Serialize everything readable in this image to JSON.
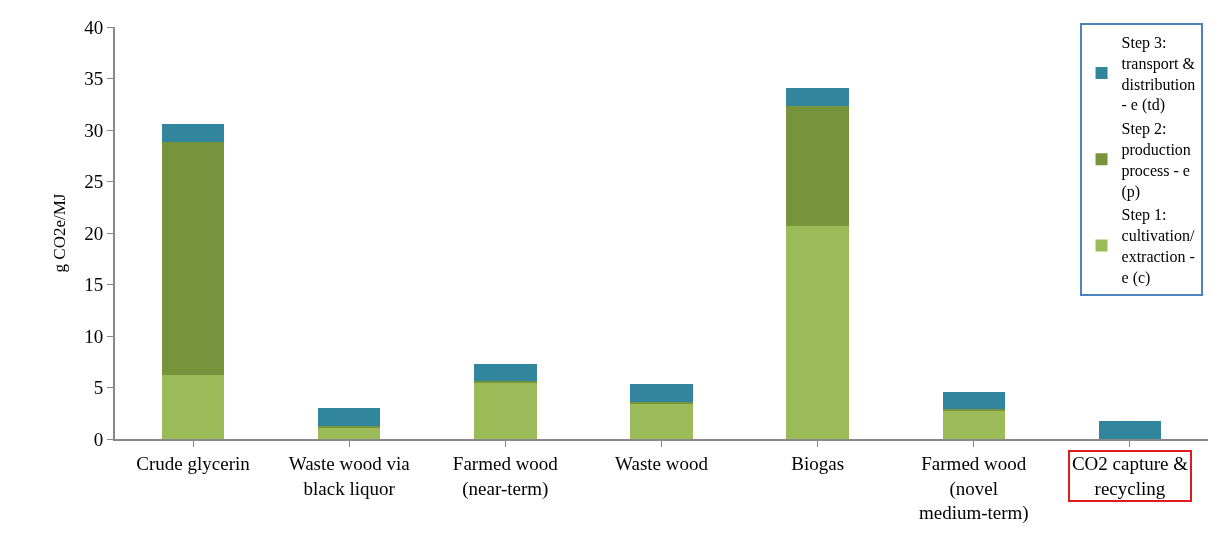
{
  "chart_data": {
    "type": "bar",
    "stacked": true,
    "ylabel": "g CO2e/MJ",
    "categories": [
      "Crude glycerin",
      "Waste wood via black liquor",
      "Farmed wood (near-term)",
      "Waste wood",
      "Biogas",
      "Farmed wood (novel medium-term)",
      "CO2 capture & recycling"
    ],
    "series": [
      {
        "name": "Step 1: cultivation/ extraction - e (c)",
        "color": "#9bbb59",
        "values": [
          6.2,
          1.1,
          5.4,
          3.4,
          20.7,
          2.8,
          0
        ]
      },
      {
        "name": "Step 2: production process - e (p)",
        "color": "#77933c",
        "values": [
          22.6,
          0.2,
          0.2,
          0.2,
          11.6,
          0.1,
          0
        ]
      },
      {
        "name": "Step 3: transport & distribution - e (td)",
        "color": "#31859c",
        "values": [
          1.8,
          1.7,
          1.7,
          1.7,
          1.8,
          1.7,
          1.7
        ]
      }
    ],
    "ylim": [
      0,
      40
    ],
    "yticks": [
      0,
      5,
      10,
      15,
      20,
      25,
      30,
      35,
      40
    ],
    "grid": false,
    "legend": "top right"
  }
}
